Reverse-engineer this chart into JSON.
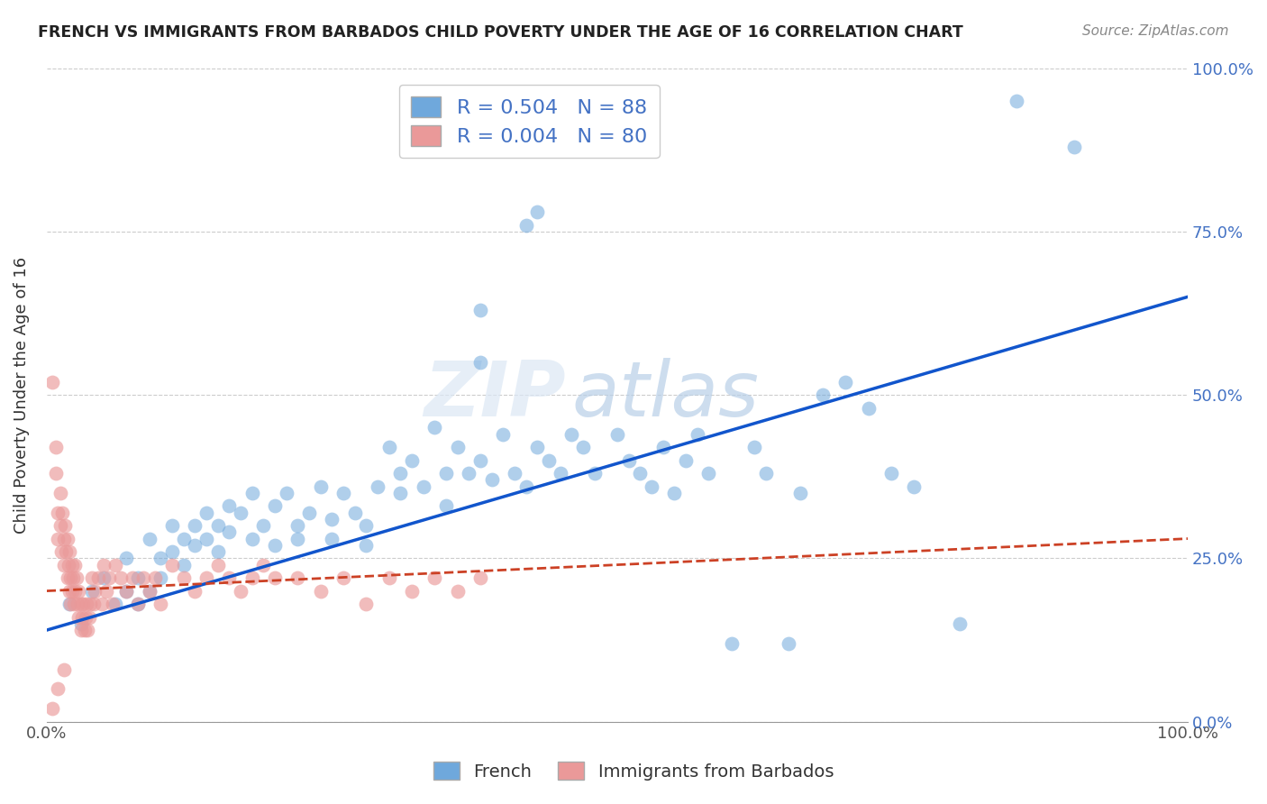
{
  "title": "FRENCH VS IMMIGRANTS FROM BARBADOS CHILD POVERTY UNDER THE AGE OF 16 CORRELATION CHART",
  "source": "Source: ZipAtlas.com",
  "ylabel": "Child Poverty Under the Age of 16",
  "xlim": [
    0.0,
    1.0
  ],
  "ylim": [
    0.0,
    1.0
  ],
  "ytick_labels": [
    "0.0%",
    "25.0%",
    "50.0%",
    "75.0%",
    "100.0%"
  ],
  "ytick_positions": [
    0.0,
    0.25,
    0.5,
    0.75,
    1.0
  ],
  "french_R": "0.504",
  "french_N": "88",
  "barbados_R": "0.004",
  "barbados_N": "80",
  "french_color": "#6fa8dc",
  "barbados_color": "#ea9999",
  "french_line_color": "#1155cc",
  "barbados_line_color": "#cc4125",
  "watermark_zip": "ZIP",
  "watermark_atlas": "atlas",
  "legend_french_label": "French",
  "legend_barbados_label": "Immigrants from Barbados",
  "french_scatter": [
    [
      0.02,
      0.18
    ],
    [
      0.03,
      0.15
    ],
    [
      0.04,
      0.2
    ],
    [
      0.05,
      0.22
    ],
    [
      0.06,
      0.18
    ],
    [
      0.07,
      0.25
    ],
    [
      0.07,
      0.2
    ],
    [
      0.08,
      0.22
    ],
    [
      0.08,
      0.18
    ],
    [
      0.09,
      0.28
    ],
    [
      0.09,
      0.2
    ],
    [
      0.1,
      0.25
    ],
    [
      0.1,
      0.22
    ],
    [
      0.11,
      0.3
    ],
    [
      0.11,
      0.26
    ],
    [
      0.12,
      0.28
    ],
    [
      0.12,
      0.24
    ],
    [
      0.13,
      0.3
    ],
    [
      0.13,
      0.27
    ],
    [
      0.14,
      0.32
    ],
    [
      0.14,
      0.28
    ],
    [
      0.15,
      0.3
    ],
    [
      0.15,
      0.26
    ],
    [
      0.16,
      0.33
    ],
    [
      0.16,
      0.29
    ],
    [
      0.17,
      0.32
    ],
    [
      0.18,
      0.28
    ],
    [
      0.18,
      0.35
    ],
    [
      0.19,
      0.3
    ],
    [
      0.2,
      0.33
    ],
    [
      0.2,
      0.27
    ],
    [
      0.21,
      0.35
    ],
    [
      0.22,
      0.3
    ],
    [
      0.22,
      0.28
    ],
    [
      0.23,
      0.32
    ],
    [
      0.24,
      0.36
    ],
    [
      0.25,
      0.31
    ],
    [
      0.25,
      0.28
    ],
    [
      0.26,
      0.35
    ],
    [
      0.27,
      0.32
    ],
    [
      0.28,
      0.3
    ],
    [
      0.28,
      0.27
    ],
    [
      0.29,
      0.36
    ],
    [
      0.3,
      0.42
    ],
    [
      0.31,
      0.38
    ],
    [
      0.31,
      0.35
    ],
    [
      0.32,
      0.4
    ],
    [
      0.33,
      0.36
    ],
    [
      0.34,
      0.45
    ],
    [
      0.35,
      0.38
    ],
    [
      0.35,
      0.33
    ],
    [
      0.36,
      0.42
    ],
    [
      0.37,
      0.38
    ],
    [
      0.38,
      0.55
    ],
    [
      0.38,
      0.4
    ],
    [
      0.39,
      0.37
    ],
    [
      0.4,
      0.44
    ],
    [
      0.41,
      0.38
    ],
    [
      0.42,
      0.36
    ],
    [
      0.43,
      0.42
    ],
    [
      0.44,
      0.4
    ],
    [
      0.45,
      0.38
    ],
    [
      0.46,
      0.44
    ],
    [
      0.47,
      0.42
    ],
    [
      0.48,
      0.38
    ],
    [
      0.5,
      0.44
    ],
    [
      0.51,
      0.4
    ],
    [
      0.52,
      0.38
    ],
    [
      0.53,
      0.36
    ],
    [
      0.54,
      0.42
    ],
    [
      0.55,
      0.35
    ],
    [
      0.56,
      0.4
    ],
    [
      0.57,
      0.44
    ],
    [
      0.58,
      0.38
    ],
    [
      0.6,
      0.12
    ],
    [
      0.62,
      0.42
    ],
    [
      0.63,
      0.38
    ],
    [
      0.65,
      0.12
    ],
    [
      0.66,
      0.35
    ],
    [
      0.68,
      0.5
    ],
    [
      0.7,
      0.52
    ],
    [
      0.72,
      0.48
    ],
    [
      0.74,
      0.38
    ],
    [
      0.76,
      0.36
    ],
    [
      0.8,
      0.15
    ],
    [
      0.85,
      0.95
    ],
    [
      0.9,
      0.88
    ],
    [
      0.42,
      0.76
    ],
    [
      0.43,
      0.78
    ],
    [
      0.38,
      0.63
    ]
  ],
  "barbados_scatter": [
    [
      0.005,
      0.52
    ],
    [
      0.008,
      0.42
    ],
    [
      0.008,
      0.38
    ],
    [
      0.01,
      0.32
    ],
    [
      0.01,
      0.28
    ],
    [
      0.012,
      0.35
    ],
    [
      0.012,
      0.3
    ],
    [
      0.013,
      0.26
    ],
    [
      0.014,
      0.32
    ],
    [
      0.015,
      0.28
    ],
    [
      0.015,
      0.24
    ],
    [
      0.016,
      0.3
    ],
    [
      0.017,
      0.26
    ],
    [
      0.018,
      0.28
    ],
    [
      0.018,
      0.22
    ],
    [
      0.019,
      0.24
    ],
    [
      0.02,
      0.26
    ],
    [
      0.02,
      0.2
    ],
    [
      0.021,
      0.22
    ],
    [
      0.021,
      0.18
    ],
    [
      0.022,
      0.24
    ],
    [
      0.022,
      0.2
    ],
    [
      0.023,
      0.22
    ],
    [
      0.024,
      0.18
    ],
    [
      0.025,
      0.24
    ],
    [
      0.025,
      0.2
    ],
    [
      0.026,
      0.22
    ],
    [
      0.027,
      0.18
    ],
    [
      0.028,
      0.2
    ],
    [
      0.028,
      0.16
    ],
    [
      0.03,
      0.18
    ],
    [
      0.03,
      0.14
    ],
    [
      0.031,
      0.16
    ],
    [
      0.032,
      0.18
    ],
    [
      0.033,
      0.14
    ],
    [
      0.034,
      0.16
    ],
    [
      0.035,
      0.18
    ],
    [
      0.036,
      0.14
    ],
    [
      0.037,
      0.16
    ],
    [
      0.038,
      0.18
    ],
    [
      0.04,
      0.22
    ],
    [
      0.041,
      0.18
    ],
    [
      0.042,
      0.2
    ],
    [
      0.045,
      0.22
    ],
    [
      0.048,
      0.18
    ],
    [
      0.05,
      0.24
    ],
    [
      0.052,
      0.2
    ],
    [
      0.055,
      0.22
    ],
    [
      0.058,
      0.18
    ],
    [
      0.06,
      0.24
    ],
    [
      0.065,
      0.22
    ],
    [
      0.07,
      0.2
    ],
    [
      0.075,
      0.22
    ],
    [
      0.08,
      0.18
    ],
    [
      0.085,
      0.22
    ],
    [
      0.09,
      0.2
    ],
    [
      0.095,
      0.22
    ],
    [
      0.1,
      0.18
    ],
    [
      0.11,
      0.24
    ],
    [
      0.12,
      0.22
    ],
    [
      0.13,
      0.2
    ],
    [
      0.14,
      0.22
    ],
    [
      0.15,
      0.24
    ],
    [
      0.16,
      0.22
    ],
    [
      0.17,
      0.2
    ],
    [
      0.18,
      0.22
    ],
    [
      0.19,
      0.24
    ],
    [
      0.2,
      0.22
    ],
    [
      0.22,
      0.22
    ],
    [
      0.24,
      0.2
    ],
    [
      0.26,
      0.22
    ],
    [
      0.28,
      0.18
    ],
    [
      0.3,
      0.22
    ],
    [
      0.32,
      0.2
    ],
    [
      0.34,
      0.22
    ],
    [
      0.36,
      0.2
    ],
    [
      0.38,
      0.22
    ],
    [
      0.005,
      0.02
    ],
    [
      0.01,
      0.05
    ],
    [
      0.015,
      0.08
    ]
  ],
  "french_trendline": [
    [
      0.0,
      0.14
    ],
    [
      1.0,
      0.65
    ]
  ],
  "barbados_trendline": [
    [
      0.0,
      0.2
    ],
    [
      1.0,
      0.28
    ]
  ]
}
